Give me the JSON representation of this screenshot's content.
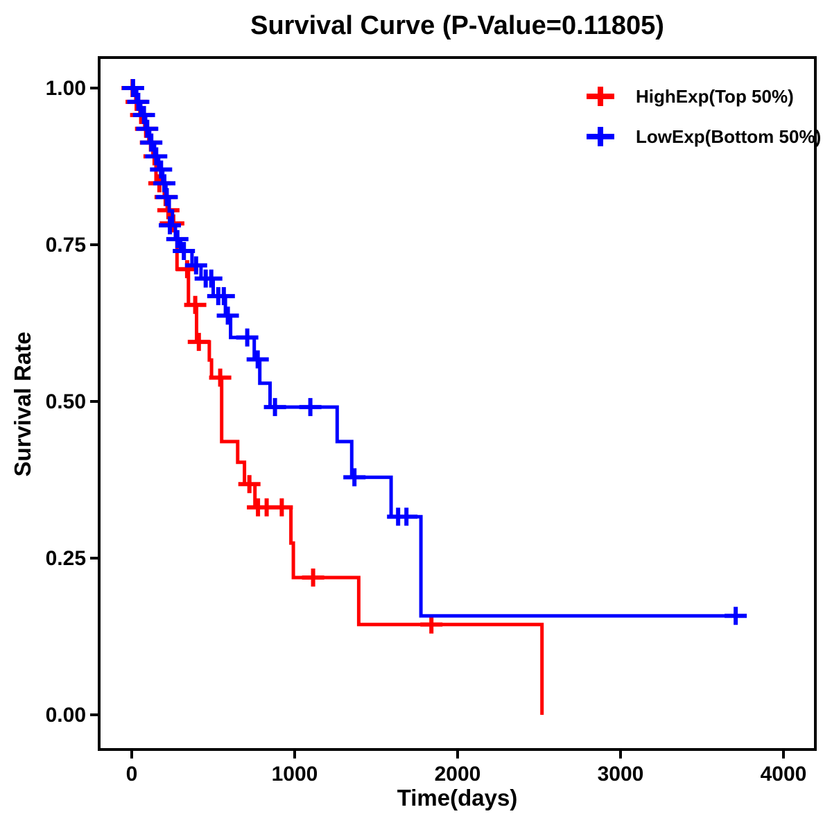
{
  "chart_data": {
    "type": "line",
    "subtype": "kaplan-meier-step-survival",
    "title": "Survival Curve (P-Value=0.11805)",
    "p_value": "0.11805",
    "xlabel": "Time(days)",
    "ylabel": "Survival Rate",
    "xlim": [
      0,
      4000
    ],
    "ylim": [
      0.0,
      1.0
    ],
    "x_ticks": [
      0,
      1000,
      2000,
      3000,
      4000
    ],
    "y_ticks": [
      0.0,
      0.25,
      0.5,
      0.75,
      1.0
    ],
    "y_tick_labels": [
      "0.00",
      "0.25",
      "0.50",
      "0.75",
      "1.00"
    ],
    "grid": "off",
    "legend_position": "top-right-inside",
    "series": [
      {
        "name": "HighExp(Top 50%)",
        "color": "#FF0000",
        "steps": [
          [
            0,
            1.0
          ],
          [
            25,
            0.978
          ],
          [
            50,
            0.957
          ],
          [
            80,
            0.935
          ],
          [
            105,
            0.913
          ],
          [
            130,
            0.891
          ],
          [
            149,
            0.848
          ],
          [
            200,
            0.826
          ],
          [
            218,
            0.805
          ],
          [
            232,
            0.784
          ],
          [
            268,
            0.766
          ],
          [
            278,
            0.711
          ],
          [
            348,
            0.654
          ],
          [
            398,
            0.595
          ],
          [
            476,
            0.566
          ],
          [
            490,
            0.538
          ],
          [
            552,
            0.436
          ],
          [
            650,
            0.403
          ],
          [
            692,
            0.368
          ],
          [
            756,
            0.331
          ],
          [
            977,
            0.274
          ],
          [
            992,
            0.219
          ],
          [
            1393,
            0.144
          ],
          [
            2518,
            0.0
          ]
        ],
        "censor_marks": [
          [
            5,
            1.0
          ],
          [
            30,
            0.978
          ],
          [
            58,
            0.957
          ],
          [
            88,
            0.935
          ],
          [
            118,
            0.913
          ],
          [
            140,
            0.891
          ],
          [
            170,
            0.848
          ],
          [
            208,
            0.826
          ],
          [
            225,
            0.805
          ],
          [
            240,
            0.784
          ],
          [
            255,
            0.784
          ],
          [
            340,
            0.711
          ],
          [
            390,
            0.654
          ],
          [
            412,
            0.595
          ],
          [
            543,
            0.538
          ],
          [
            722,
            0.368
          ],
          [
            775,
            0.331
          ],
          [
            828,
            0.331
          ],
          [
            921,
            0.331
          ],
          [
            1113,
            0.219
          ],
          [
            1839,
            0.144
          ]
        ],
        "end_time": 2518
      },
      {
        "name": "LowExp(Bottom 50%)",
        "color": "#0000FF",
        "steps": [
          [
            0,
            1.0
          ],
          [
            30,
            0.978
          ],
          [
            55,
            0.957
          ],
          [
            85,
            0.935
          ],
          [
            110,
            0.913
          ],
          [
            140,
            0.891
          ],
          [
            165,
            0.87
          ],
          [
            190,
            0.848
          ],
          [
            210,
            0.826
          ],
          [
            230,
            0.804
          ],
          [
            250,
            0.781
          ],
          [
            268,
            0.759
          ],
          [
            300,
            0.74
          ],
          [
            370,
            0.717
          ],
          [
            425,
            0.696
          ],
          [
            500,
            0.668
          ],
          [
            575,
            0.637
          ],
          [
            607,
            0.602
          ],
          [
            752,
            0.567
          ],
          [
            786,
            0.529
          ],
          [
            849,
            0.491
          ],
          [
            1261,
            0.436
          ],
          [
            1350,
            0.379
          ],
          [
            1592,
            0.316
          ],
          [
            1775,
            0.158
          ]
        ],
        "censor_marks": [
          [
            8,
            1.0
          ],
          [
            40,
            0.978
          ],
          [
            75,
            0.957
          ],
          [
            95,
            0.935
          ],
          [
            120,
            0.913
          ],
          [
            150,
            0.891
          ],
          [
            180,
            0.87
          ],
          [
            200,
            0.848
          ],
          [
            215,
            0.826
          ],
          [
            234,
            0.781
          ],
          [
            280,
            0.759
          ],
          [
            320,
            0.74
          ],
          [
            395,
            0.717
          ],
          [
            454,
            0.696
          ],
          [
            488,
            0.696
          ],
          [
            531,
            0.668
          ],
          [
            565,
            0.668
          ],
          [
            590,
            0.637
          ],
          [
            709,
            0.602
          ],
          [
            773,
            0.567
          ],
          [
            879,
            0.491
          ],
          [
            1096,
            0.491
          ],
          [
            1367,
            0.379
          ],
          [
            1635,
            0.316
          ],
          [
            1686,
            0.316
          ],
          [
            3707,
            0.158
          ]
        ],
        "end_time": 3760
      }
    ]
  },
  "colors": {
    "high_exp": "#FF0000",
    "low_exp": "#0000FF",
    "axis": "#000000",
    "background": "#FFFFFF"
  }
}
